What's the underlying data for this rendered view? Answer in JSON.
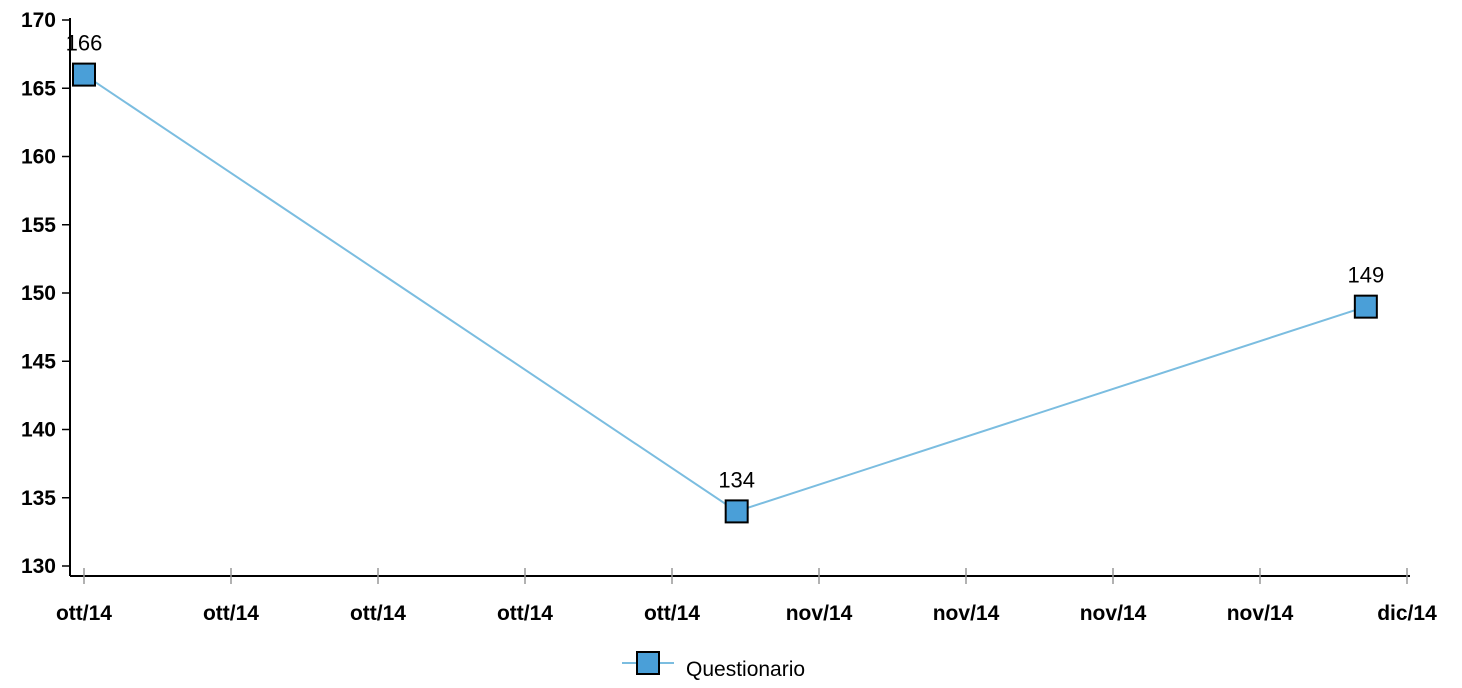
{
  "chart_data": {
    "type": "line",
    "title": "",
    "xlabel": "",
    "ylabel": "",
    "ylim": [
      130,
      170
    ],
    "y_ticks": [
      130,
      135,
      140,
      145,
      150,
      155,
      160,
      165,
      170
    ],
    "x_tick_labels": [
      "ott/14",
      "ott/14",
      "ott/14",
      "ott/14",
      "ott/14",
      "nov/14",
      "nov/14",
      "nov/14",
      "nov/14",
      "dic/14"
    ],
    "series": [
      {
        "name": "Questionario",
        "color": "#4a9fd8",
        "line_color": "#7bbde0",
        "marker": "square",
        "points": [
          {
            "x": 0,
            "y": 166,
            "label": "166"
          },
          {
            "x": 4.44,
            "y": 134,
            "label": "134"
          },
          {
            "x": 8.72,
            "y": 149,
            "label": "149"
          }
        ]
      }
    ],
    "x_range": [
      0,
      8.72
    ],
    "legend": {
      "position": "bottom-center",
      "entries": [
        "Questionario"
      ]
    },
    "grid": false
  }
}
